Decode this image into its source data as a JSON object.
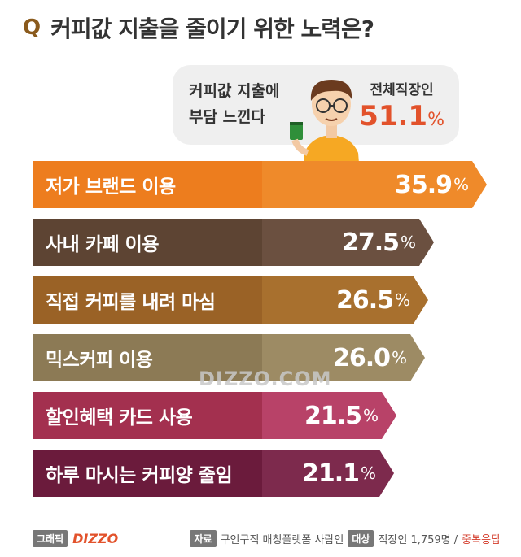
{
  "title": {
    "q_mark": "Q",
    "text": "커피값 지출을 줄이기 위한 노력은?"
  },
  "callout": {
    "line1": "커피값 지출에",
    "line2": "부담 느낀다",
    "group": "전체직장인",
    "value": "51.1",
    "unit": "%"
  },
  "watermark": "DIZZO.COM",
  "footer": {
    "graphic_tag": "그래픽",
    "brand": "DIZZO",
    "source_tag": "자료",
    "source_text": "구인구직 매칭플랫폼 사람인",
    "target_tag": "대상",
    "target_text": "직장인 1,759명 /",
    "dup_text": "중복응답"
  },
  "chart_data": {
    "type": "bar",
    "orientation": "horizontal",
    "categories": [
      "저가 브랜드 이용",
      "사내 카페 이용",
      "직접 커피를 내려 마심",
      "믹스커피 이용",
      "할인혜택 카드 사용",
      "하루 마시는 커피양 줄임"
    ],
    "values": [
      35.9,
      27.5,
      26.5,
      26.0,
      21.5,
      21.1
    ],
    "value_labels": [
      "35.9",
      "27.5",
      "26.5",
      "26.0",
      "21.5",
      "21.1"
    ],
    "unit": "%",
    "colors": [
      {
        "label": "#ed7d1e",
        "bar": "#ef8a2a"
      },
      {
        "label": "#5d4433",
        "bar": "#6b5040"
      },
      {
        "label": "#9a6226",
        "bar": "#a8702e"
      },
      {
        "label": "#8c7a55",
        "bar": "#9d8b64"
      },
      {
        "label": "#a3304f",
        "bar": "#b84268"
      },
      {
        "label": "#6b1b3c",
        "bar": "#7d2a4d"
      }
    ],
    "xlim": [
      0,
      35.9
    ]
  }
}
